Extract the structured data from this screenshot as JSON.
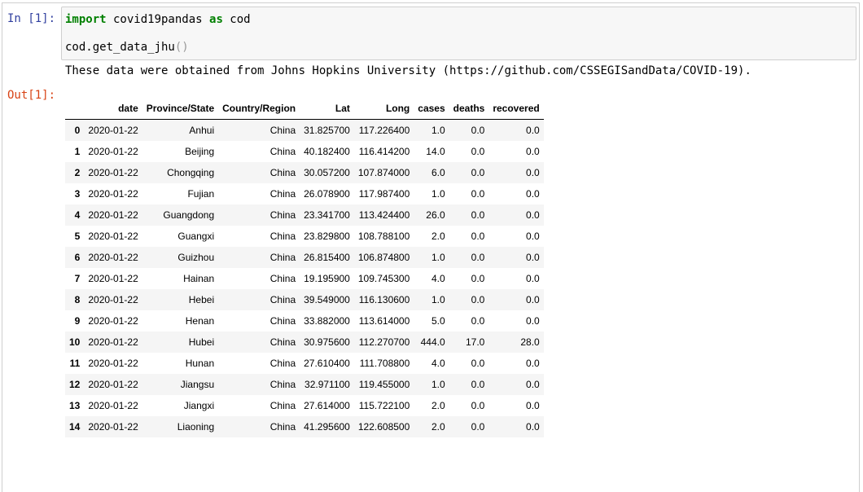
{
  "input_prompt": "In [1]:",
  "output_prompt": "Out[1]:",
  "code": {
    "line1": {
      "kw_import": "import",
      "module": " covid19pandas ",
      "kw_as": "as",
      "alias": " cod"
    },
    "line2": {
      "call": "cod.get_data_jhu",
      "parens": "()"
    }
  },
  "stream_output": "These data were obtained from Johns Hopkins University (https://github.com/CSSEGISandData/COVID-19).",
  "table": {
    "columns": [
      "",
      "date",
      "Province/State",
      "Country/Region",
      "Lat",
      "Long",
      "cases",
      "deaths",
      "recovered"
    ],
    "rows": [
      [
        "0",
        "2020-01-22",
        "Anhui",
        "China",
        "31.825700",
        "117.226400",
        "1.0",
        "0.0",
        "0.0"
      ],
      [
        "1",
        "2020-01-22",
        "Beijing",
        "China",
        "40.182400",
        "116.414200",
        "14.0",
        "0.0",
        "0.0"
      ],
      [
        "2",
        "2020-01-22",
        "Chongqing",
        "China",
        "30.057200",
        "107.874000",
        "6.0",
        "0.0",
        "0.0"
      ],
      [
        "3",
        "2020-01-22",
        "Fujian",
        "China",
        "26.078900",
        "117.987400",
        "1.0",
        "0.0",
        "0.0"
      ],
      [
        "4",
        "2020-01-22",
        "Guangdong",
        "China",
        "23.341700",
        "113.424400",
        "26.0",
        "0.0",
        "0.0"
      ],
      [
        "5",
        "2020-01-22",
        "Guangxi",
        "China",
        "23.829800",
        "108.788100",
        "2.0",
        "0.0",
        "0.0"
      ],
      [
        "6",
        "2020-01-22",
        "Guizhou",
        "China",
        "26.815400",
        "106.874800",
        "1.0",
        "0.0",
        "0.0"
      ],
      [
        "7",
        "2020-01-22",
        "Hainan",
        "China",
        "19.195900",
        "109.745300",
        "4.0",
        "0.0",
        "0.0"
      ],
      [
        "8",
        "2020-01-22",
        "Hebei",
        "China",
        "39.549000",
        "116.130600",
        "1.0",
        "0.0",
        "0.0"
      ],
      [
        "9",
        "2020-01-22",
        "Henan",
        "China",
        "33.882000",
        "113.614000",
        "5.0",
        "0.0",
        "0.0"
      ],
      [
        "10",
        "2020-01-22",
        "Hubei",
        "China",
        "30.975600",
        "112.270700",
        "444.0",
        "17.0",
        "28.0"
      ],
      [
        "11",
        "2020-01-22",
        "Hunan",
        "China",
        "27.610400",
        "111.708800",
        "4.0",
        "0.0",
        "0.0"
      ],
      [
        "12",
        "2020-01-22",
        "Jiangsu",
        "China",
        "32.971100",
        "119.455000",
        "1.0",
        "0.0",
        "0.0"
      ],
      [
        "13",
        "2020-01-22",
        "Jiangxi",
        "China",
        "27.614000",
        "115.722100",
        "2.0",
        "0.0",
        "0.0"
      ],
      [
        "14",
        "2020-01-22",
        "Liaoning",
        "China",
        "41.295600",
        "122.608500",
        "2.0",
        "0.0",
        "0.0"
      ]
    ]
  },
  "colors": {
    "in_prompt": "#303f9f",
    "out_prompt": "#d84315",
    "keyword": "#008000",
    "input_bg": "#f7f7f7"
  }
}
